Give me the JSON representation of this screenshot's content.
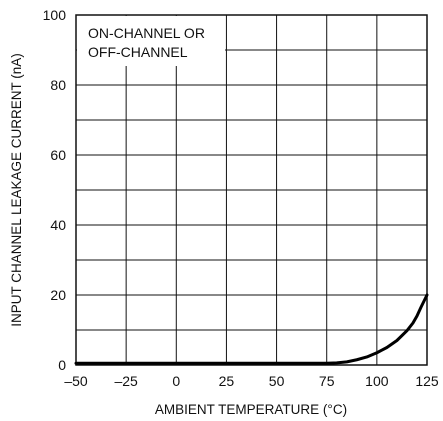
{
  "chart_data": {
    "type": "line",
    "title": "",
    "xlabel": "AMBIENT TEMPERATURE (°C)",
    "ylabel": "INPUT CHANNEL LEAKAGE CURRENT (nA)",
    "xlim": [
      -50,
      125
    ],
    "ylim": [
      0,
      100
    ],
    "x_ticks": [
      "–50",
      "–25",
      "0",
      "25",
      "50",
      "75",
      "100",
      "125"
    ],
    "y_ticks": [
      "0",
      "20",
      "40",
      "60",
      "80",
      "100"
    ],
    "grid": true,
    "annotation": [
      "ON-CHANNEL OR",
      "OFF-CHANNEL"
    ],
    "series": [
      {
        "color": "#000000",
        "points": [
          [
            -50,
            0.5
          ],
          [
            0,
            0.5
          ],
          [
            50,
            0.5
          ],
          [
            75,
            0.5
          ],
          [
            80,
            0.6
          ],
          [
            85,
            0.9
          ],
          [
            90,
            1.5
          ],
          [
            95,
            2.3
          ],
          [
            100,
            3.5
          ],
          [
            105,
            5.0
          ],
          [
            110,
            7.0
          ],
          [
            115,
            9.8
          ],
          [
            118,
            12.0
          ],
          [
            120,
            14.0
          ],
          [
            122,
            16.5
          ],
          [
            125,
            20.0
          ]
        ]
      }
    ]
  }
}
